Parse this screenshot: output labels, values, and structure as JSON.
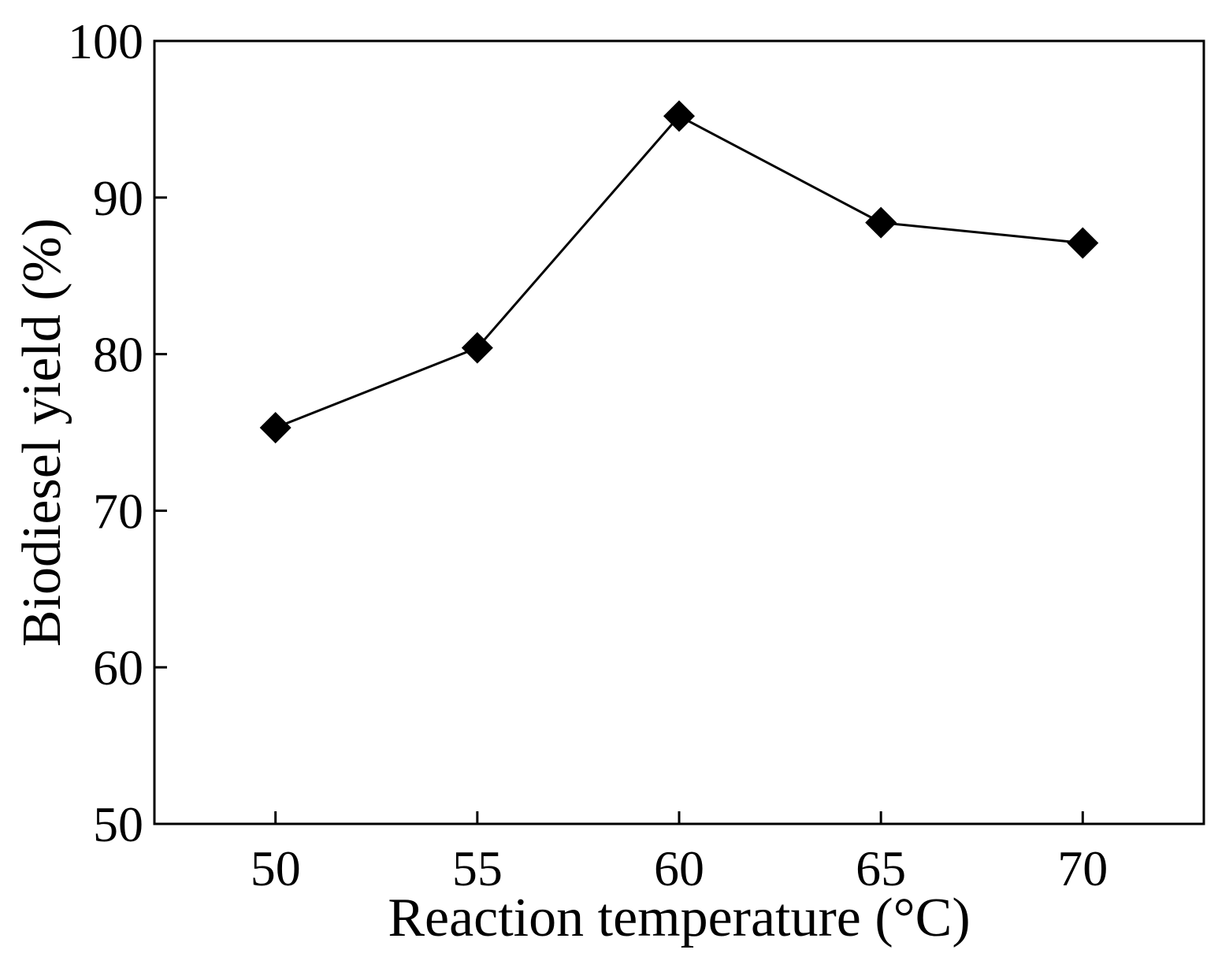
{
  "chart_data": {
    "type": "line",
    "title": "",
    "xlabel": "Reaction temperature (°C)",
    "ylabel": "Biodiesel yield (%)",
    "x": [
      50,
      55,
      60,
      65,
      70
    ],
    "series": [
      {
        "name": "Biodiesel yield",
        "values": [
          75.3,
          80.4,
          95.2,
          88.4,
          87.1
        ],
        "marker": "diamond"
      }
    ],
    "xlim": [
      47,
      73
    ],
    "ylim": [
      50,
      100
    ],
    "xticks": [
      "50",
      "55",
      "60",
      "65",
      "70"
    ],
    "yticks": [
      "50",
      "60",
      "70",
      "80",
      "90",
      "100"
    ],
    "grid": false,
    "legend": "none",
    "colors": {
      "line": "#000000",
      "marker": "#000000",
      "axis": "#000000"
    }
  }
}
